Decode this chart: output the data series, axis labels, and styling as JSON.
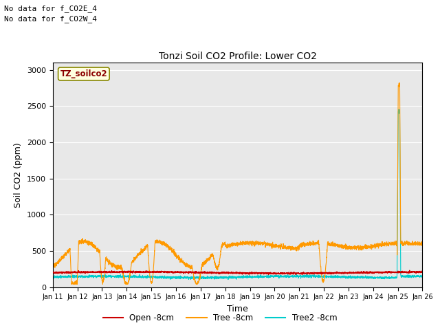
{
  "title": "Tonzi Soil CO2 Profile: Lower CO2",
  "xlabel": "Time",
  "ylabel": "Soil CO2 (ppm)",
  "ylim": [
    0,
    3100
  ],
  "yticks": [
    0,
    500,
    1000,
    1500,
    2000,
    2500,
    3000
  ],
  "background_color": "#e8e8e8",
  "note_line1": "No data for f_CO2E_4",
  "note_line2": "No data for f_CO2W_4",
  "legend_label": "TZ_soilco2",
  "legend_entries": [
    "Open -8cm",
    "Tree -8cm",
    "Tree2 -8cm"
  ],
  "legend_colors": [
    "#cc0000",
    "#ff9900",
    "#00cccc"
  ],
  "open_color": "#cc0000",
  "tree_color": "#ff9900",
  "tree2_color": "#00cccc",
  "x_start": 11,
  "x_end": 26,
  "xtick_labels": [
    "Jan 11",
    "Jan 12",
    "Jan 13",
    "Jan 14",
    "Jan 15",
    "Jan 16",
    "Jan 17",
    "Jan 18",
    "Jan 19",
    "Jan 20",
    "Jan 21",
    "Jan 22",
    "Jan 23",
    "Jan 24",
    "Jan 25",
    "Jan 26"
  ],
  "xtick_positions": [
    11,
    12,
    13,
    14,
    15,
    16,
    17,
    18,
    19,
    20,
    21,
    22,
    23,
    24,
    25,
    26
  ]
}
